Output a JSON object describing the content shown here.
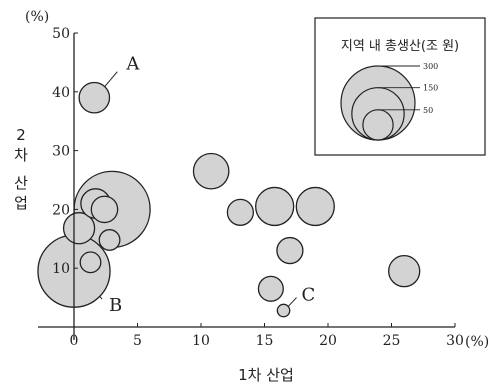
{
  "chart_data": {
    "type": "scatter",
    "subtype": "bubble",
    "xlabel": "1차 산업",
    "ylabel": "2차 산업",
    "x_unit": "(%)",
    "y_unit": "(%)",
    "xlim": [
      0,
      30
    ],
    "ylim": [
      0,
      50
    ],
    "x_ticks": [
      "0",
      "5",
      "10",
      "15",
      "20",
      "25",
      "30"
    ],
    "y_ticks": [
      "10",
      "20",
      "30",
      "40",
      "50"
    ],
    "grid": false,
    "bubble_color": "#d3d3d3",
    "stroke_color": "#222222",
    "legend": {
      "title": "지역 내 총생산(조 원)",
      "placement": "top-right",
      "sizes": [
        {
          "label": "300",
          "value": 300
        },
        {
          "label": "150",
          "value": 150
        },
        {
          "label": "50",
          "value": 50
        }
      ]
    },
    "points": [
      {
        "x": 26.0,
        "y": 9.5,
        "size": 50,
        "label": ""
      },
      {
        "x": 19.0,
        "y": 20.5,
        "size": 75,
        "label": ""
      },
      {
        "x": 15.8,
        "y": 20.5,
        "size": 75,
        "label": ""
      },
      {
        "x": 10.8,
        "y": 26.5,
        "size": 65,
        "label": ""
      },
      {
        "x": 13.1,
        "y": 19.5,
        "size": 35,
        "label": ""
      },
      {
        "x": 17.0,
        "y": 13.0,
        "size": 35,
        "label": ""
      },
      {
        "x": 15.5,
        "y": 6.5,
        "size": 32,
        "label": ""
      },
      {
        "x": 16.5,
        "y": 2.8,
        "size": 8,
        "label": "C"
      },
      {
        "x": 3.0,
        "y": 20.0,
        "size": 300,
        "label": ""
      },
      {
        "x": 1.7,
        "y": 21.0,
        "size": 45,
        "label": ""
      },
      {
        "x": 2.4,
        "y": 20.0,
        "size": 36,
        "label": ""
      },
      {
        "x": 0.4,
        "y": 16.8,
        "size": 50,
        "label": ""
      },
      {
        "x": 2.8,
        "y": 14.8,
        "size": 22,
        "label": ""
      },
      {
        "x": 1.6,
        "y": 39.0,
        "size": 48,
        "label": "A"
      },
      {
        "x": 0.0,
        "y": 9.5,
        "size": 270,
        "label": "B"
      },
      {
        "x": 1.3,
        "y": 11.0,
        "size": 22,
        "label": ""
      }
    ],
    "annotations": [
      {
        "text": "A",
        "target_point": 13
      },
      {
        "text": "B",
        "target_point": 14
      },
      {
        "text": "C",
        "target_point": 7
      }
    ]
  }
}
